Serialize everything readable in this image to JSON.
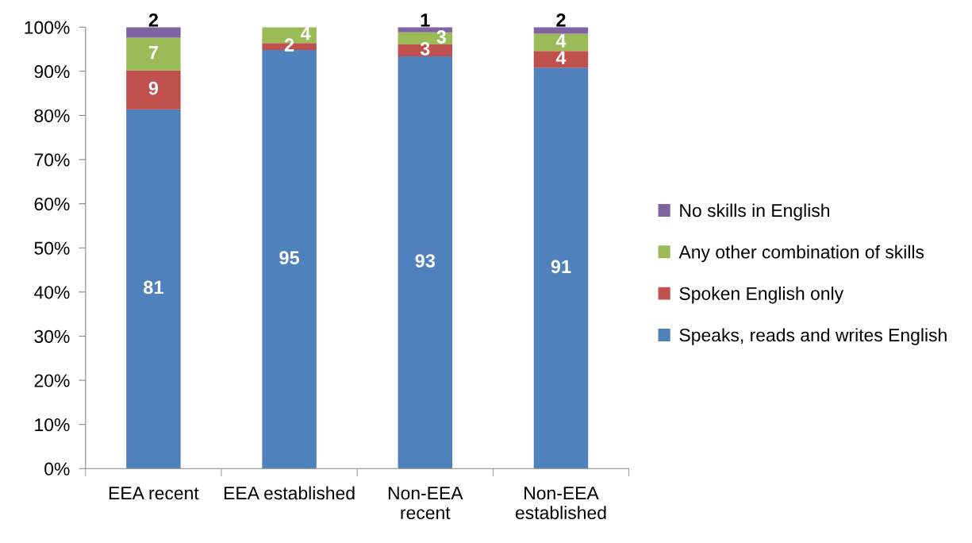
{
  "chart_data": {
    "type": "bar",
    "stacked": true,
    "categories": [
      "EEA recent",
      "EEA established",
      "Non-EEA\nrecent",
      "Non-EEA\nestablished"
    ],
    "series": [
      {
        "name": "Speaks, reads and writes English",
        "color": "#4f81bd",
        "values": [
          81.4,
          94.8,
          93.4,
          90.8
        ],
        "value_labels": [
          "81",
          "95",
          "93",
          "91"
        ]
      },
      {
        "name": "Spoken English only",
        "color": "#c0504d",
        "values": [
          8.8,
          1.6,
          2.7,
          3.8
        ],
        "value_labels": [
          "9",
          "2",
          "3",
          "4"
        ]
      },
      {
        "name": "Any other combination of skills",
        "color": "#9bbb59",
        "values": [
          7.4,
          3.6,
          2.7,
          3.9
        ],
        "value_labels": [
          "7",
          "4",
          "3",
          "4"
        ]
      },
      {
        "name": "No skills in English",
        "color": "#8064a2",
        "values": [
          2.4,
          null,
          1.2,
          1.5
        ],
        "value_labels": [
          "2",
          null,
          "1",
          "2"
        ]
      }
    ],
    "ylim": [
      0,
      100
    ],
    "yticks": [
      {
        "value": 0,
        "label": "0%"
      },
      {
        "value": 10,
        "label": "10%"
      },
      {
        "value": 20,
        "label": "20%"
      },
      {
        "value": 30,
        "label": "30%"
      },
      {
        "value": 40,
        "label": "40%"
      },
      {
        "value": 50,
        "label": "50%"
      },
      {
        "value": 60,
        "label": "60%"
      },
      {
        "value": 70,
        "label": "70%"
      },
      {
        "value": 80,
        "label": "80%"
      },
      {
        "value": 90,
        "label": "90%"
      },
      {
        "value": 100,
        "label": "100%"
      }
    ],
    "legend": "right",
    "grid": false
  }
}
